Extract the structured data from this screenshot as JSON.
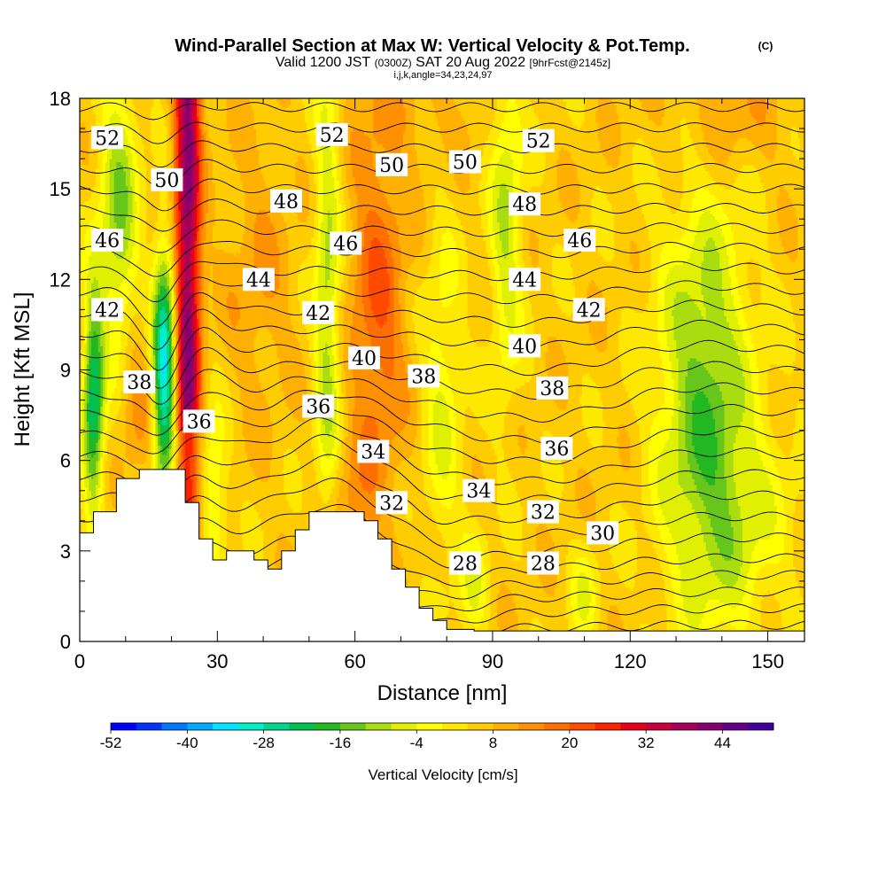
{
  "header": {
    "title": "Wind-Parallel Section at Max W: Vertical Velocity & Pot.Temp.",
    "copyright": "(C)",
    "subtitle_valid": "Valid 1200 JST",
    "subtitle_zulu": "(0300Z)",
    "subtitle_date": "SAT 20 Aug 2022",
    "subtitle_fcst": "[9hrFcst@2145z]",
    "indices": "i,j,k,angle=34,23,24,97"
  },
  "chart_data": {
    "type": "heatmap",
    "title": "Wind-Parallel Section at Max W: Vertical Velocity & Pot.Temp.",
    "xlabel": "Distance [nm]",
    "ylabel": "Height [Kft MSL]",
    "xlim": [
      0,
      158
    ],
    "ylim": [
      0,
      18
    ],
    "x_ticks": [
      "0",
      "30",
      "60",
      "90",
      "120",
      "150"
    ],
    "y_ticks": [
      "0",
      "3",
      "6",
      "9",
      "12",
      "15",
      "18"
    ],
    "x_tick_values": [
      0,
      30,
      60,
      90,
      120,
      150
    ],
    "y_tick_values": [
      0,
      3,
      6,
      9,
      12,
      15,
      18
    ],
    "colorbar": {
      "label": "Vertical Velocity [cm/s]",
      "min": -52,
      "max": 52,
      "step": 4,
      "tick_labels": [
        "-52",
        "-40",
        "-28",
        "-16",
        "-4",
        "8",
        "20",
        "32",
        "44"
      ],
      "tick_values": [
        -52,
        -40,
        -28,
        -16,
        -4,
        8,
        20,
        32,
        44
      ],
      "colors": [
        "#0000ff",
        "#0033ff",
        "#0077ff",
        "#00aaff",
        "#00e4ff",
        "#00f0c8",
        "#00d68c",
        "#00c050",
        "#22b822",
        "#66c61c",
        "#aadd11",
        "#e0f000",
        "#ffff00",
        "#ffe800",
        "#ffcc00",
        "#ffb000",
        "#ff9000",
        "#ff6e00",
        "#ff4a00",
        "#ff2200",
        "#e8001a",
        "#c8003c",
        "#a8005a",
        "#880070",
        "#660088",
        "#440099"
      ]
    },
    "terrain_kft": [
      [
        0,
        3.6
      ],
      [
        3,
        3.6
      ],
      [
        3,
        4.3
      ],
      [
        8,
        4.3
      ],
      [
        8,
        5.4
      ],
      [
        13,
        5.4
      ],
      [
        13,
        5.7
      ],
      [
        23,
        5.7
      ],
      [
        23,
        4.6
      ],
      [
        26,
        4.6
      ],
      [
        26,
        3.4
      ],
      [
        29,
        3.4
      ],
      [
        29,
        2.7
      ],
      [
        32,
        2.7
      ],
      [
        32,
        3.0
      ],
      [
        38,
        3.0
      ],
      [
        38,
        2.7
      ],
      [
        41,
        2.7
      ],
      [
        41,
        2.4
      ],
      [
        44,
        2.4
      ],
      [
        44,
        3.0
      ],
      [
        47,
        3.0
      ],
      [
        47,
        3.7
      ],
      [
        50,
        3.7
      ],
      [
        50,
        4.3
      ],
      [
        56,
        4.3
      ],
      [
        56,
        4.3
      ],
      [
        62,
        4.3
      ],
      [
        62,
        4.0
      ],
      [
        65,
        4.0
      ],
      [
        65,
        3.4
      ],
      [
        68,
        3.4
      ],
      [
        68,
        2.4
      ],
      [
        71,
        2.4
      ],
      [
        71,
        1.8
      ],
      [
        74,
        1.8
      ],
      [
        74,
        1.1
      ],
      [
        77,
        1.1
      ],
      [
        77,
        0.7
      ],
      [
        80,
        0.7
      ],
      [
        80,
        0.4
      ],
      [
        86,
        0.4
      ],
      [
        86,
        0.35
      ],
      [
        158,
        0.35
      ]
    ],
    "theta_contour_levels": [
      24,
      25,
      26,
      27,
      28,
      29,
      30,
      31,
      32,
      33,
      34,
      35,
      36,
      37,
      38,
      39,
      40,
      41,
      42,
      43,
      44,
      45,
      46,
      47,
      48,
      49,
      50,
      51,
      52,
      53
    ],
    "theta_labels": [
      {
        "text": "52",
        "x": 6,
        "y": 16.7
      },
      {
        "text": "50",
        "x": 19,
        "y": 15.3
      },
      {
        "text": "46",
        "x": 6,
        "y": 13.3
      },
      {
        "text": "42",
        "x": 6,
        "y": 11.0
      },
      {
        "text": "38",
        "x": 13,
        "y": 8.6
      },
      {
        "text": "36",
        "x": 26,
        "y": 7.3
      },
      {
        "text": "48",
        "x": 45,
        "y": 14.6
      },
      {
        "text": "44",
        "x": 39,
        "y": 12.0
      },
      {
        "text": "52",
        "x": 55,
        "y": 16.8
      },
      {
        "text": "46",
        "x": 58,
        "y": 13.2
      },
      {
        "text": "42",
        "x": 52,
        "y": 10.9
      },
      {
        "text": "40",
        "x": 62,
        "y": 9.4
      },
      {
        "text": "36",
        "x": 52,
        "y": 7.8
      },
      {
        "text": "34",
        "x": 64,
        "y": 6.3
      },
      {
        "text": "32",
        "x": 68,
        "y": 4.6
      },
      {
        "text": "28",
        "x": 84,
        "y": 2.6
      },
      {
        "text": "50",
        "x": 68,
        "y": 15.8
      },
      {
        "text": "50",
        "x": 84,
        "y": 15.9
      },
      {
        "text": "38",
        "x": 75,
        "y": 8.8
      },
      {
        "text": "34",
        "x": 87,
        "y": 5.0
      },
      {
        "text": "52",
        "x": 100,
        "y": 16.6
      },
      {
        "text": "48",
        "x": 97,
        "y": 14.5
      },
      {
        "text": "44",
        "x": 97,
        "y": 12.0
      },
      {
        "text": "40",
        "x": 97,
        "y": 9.8
      },
      {
        "text": "38",
        "x": 103,
        "y": 8.4
      },
      {
        "text": "36",
        "x": 104,
        "y": 6.4
      },
      {
        "text": "32",
        "x": 101,
        "y": 4.3
      },
      {
        "text": "28",
        "x": 101,
        "y": 2.6
      },
      {
        "text": "46",
        "x": 109,
        "y": 13.3
      },
      {
        "text": "42",
        "x": 111,
        "y": 11.0
      },
      {
        "text": "30",
        "x": 114,
        "y": 3.6
      }
    ]
  }
}
